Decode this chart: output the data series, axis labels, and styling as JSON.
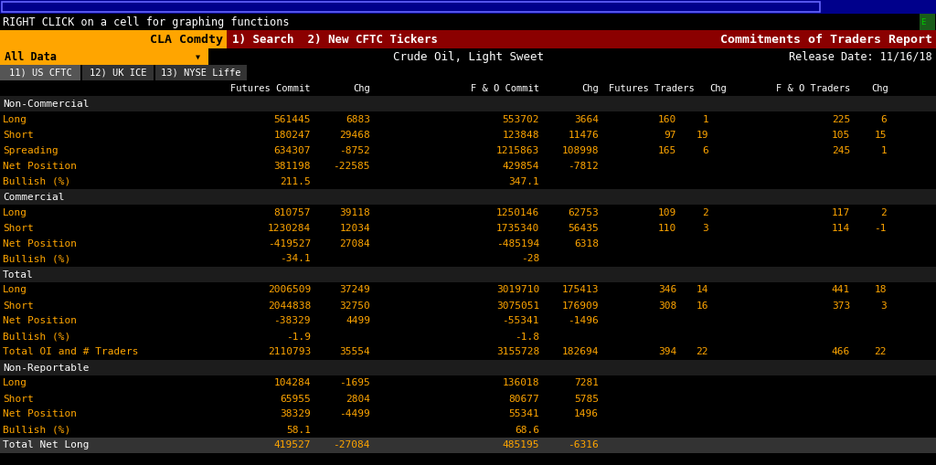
{
  "title_bar": "RIGHT CLICK on a cell for graphing functions",
  "ticker": "CLA Comdty",
  "search_text": "1) Search  2) New CFTC Tickers",
  "report_title": "Commitments of Traders Report",
  "subtitle": "Crude Oil, Light Sweet",
  "release_date": "Release Date: 11/16/18",
  "tabs": [
    "11) US CFTC",
    "12) UK ICE",
    "13) NYSE Liffe"
  ],
  "all_data_label": "All Data",
  "sections": [
    {
      "header": "Non-Commercial",
      "rows": [
        {
          "label": "Long",
          "vals": [
            "561445",
            "6883",
            "553702",
            "3664",
            "160",
            "1",
            "225",
            "6"
          ]
        },
        {
          "label": "Short",
          "vals": [
            "180247",
            "29468",
            "123848",
            "11476",
            "97",
            "19",
            "105",
            "15"
          ]
        },
        {
          "label": "Spreading",
          "vals": [
            "634307",
            "-8752",
            "1215863",
            "108998",
            "165",
            "6",
            "245",
            "1"
          ]
        },
        {
          "label": "Net Position",
          "vals": [
            "381198",
            "-22585",
            "429854",
            "-7812",
            "",
            "",
            "",
            ""
          ]
        },
        {
          "label": "Bullish (%)",
          "vals": [
            "211.5",
            "",
            "347.1",
            "",
            "",
            "",
            "",
            ""
          ]
        }
      ]
    },
    {
      "header": "Commercial",
      "rows": [
        {
          "label": "Long",
          "vals": [
            "810757",
            "39118",
            "1250146",
            "62753",
            "109",
            "2",
            "117",
            "2"
          ]
        },
        {
          "label": "Short",
          "vals": [
            "1230284",
            "12034",
            "1735340",
            "56435",
            "110",
            "3",
            "114",
            "-1"
          ]
        },
        {
          "label": "Net Position",
          "vals": [
            "-419527",
            "27084",
            "-485194",
            "6318",
            "",
            "",
            "",
            ""
          ]
        },
        {
          "label": "Bullish (%)",
          "vals": [
            "-34.1",
            "",
            "-28",
            "",
            "",
            "",
            "",
            ""
          ]
        }
      ]
    },
    {
      "header": "Total",
      "rows": [
        {
          "label": "Long",
          "vals": [
            "2006509",
            "37249",
            "3019710",
            "175413",
            "346",
            "14",
            "441",
            "18"
          ]
        },
        {
          "label": "Short",
          "vals": [
            "2044838",
            "32750",
            "3075051",
            "176909",
            "308",
            "16",
            "373",
            "3"
          ]
        },
        {
          "label": "Net Position",
          "vals": [
            "-38329",
            "4499",
            "-55341",
            "-1496",
            "",
            "",
            "",
            ""
          ]
        },
        {
          "label": "Bullish (%)",
          "vals": [
            "-1.9",
            "",
            "-1.8",
            "",
            "",
            "",
            "",
            ""
          ]
        },
        {
          "label": "Total OI and # Traders",
          "vals": [
            "2110793",
            "35554",
            "3155728",
            "182694",
            "394",
            "22",
            "466",
            "22"
          ]
        }
      ]
    },
    {
      "header": "Non-Reportable",
      "rows": [
        {
          "label": "Long",
          "vals": [
            "104284",
            "-1695",
            "136018",
            "7281",
            "",
            "",
            "",
            ""
          ]
        },
        {
          "label": "Short",
          "vals": [
            "65955",
            "2804",
            "80677",
            "5785",
            "",
            "",
            "",
            ""
          ]
        },
        {
          "label": "Net Position",
          "vals": [
            "38329",
            "-4499",
            "55341",
            "1496",
            "",
            "",
            "",
            ""
          ]
        },
        {
          "label": "Bullish (%)",
          "vals": [
            "58.1",
            "",
            "68.6",
            "",
            "",
            "",
            "",
            ""
          ]
        }
      ]
    }
  ],
  "footer_row": {
    "label": "Total Net Long",
    "vals": [
      "419527",
      "-27084",
      "485195",
      "-6316",
      "",
      "",
      "",
      ""
    ]
  },
  "col_headers": [
    "Futures Commit",
    "Chg",
    "F & O Commit",
    "Chg",
    "Futures Traders",
    "Chg",
    "F & O Traders",
    "Chg"
  ],
  "bg_color": "#000000",
  "section_header_bg": "#1c1c1c",
  "footer_bg": "#333333",
  "text_orange": "#FFA500",
  "text_white": "#FFFFFF",
  "text_black": "#000000",
  "ticker_bg": "#FFA500",
  "search_bg": "#8B0000",
  "report_bg": "#8B0000",
  "alldata_bg": "#FFA500",
  "tab_active_bg": "#555555",
  "tab_inactive_bg": "#333333",
  "top_bar_bg": "#00008B",
  "title_row_bg": "#000000",
  "col_header_bg": "#000000"
}
